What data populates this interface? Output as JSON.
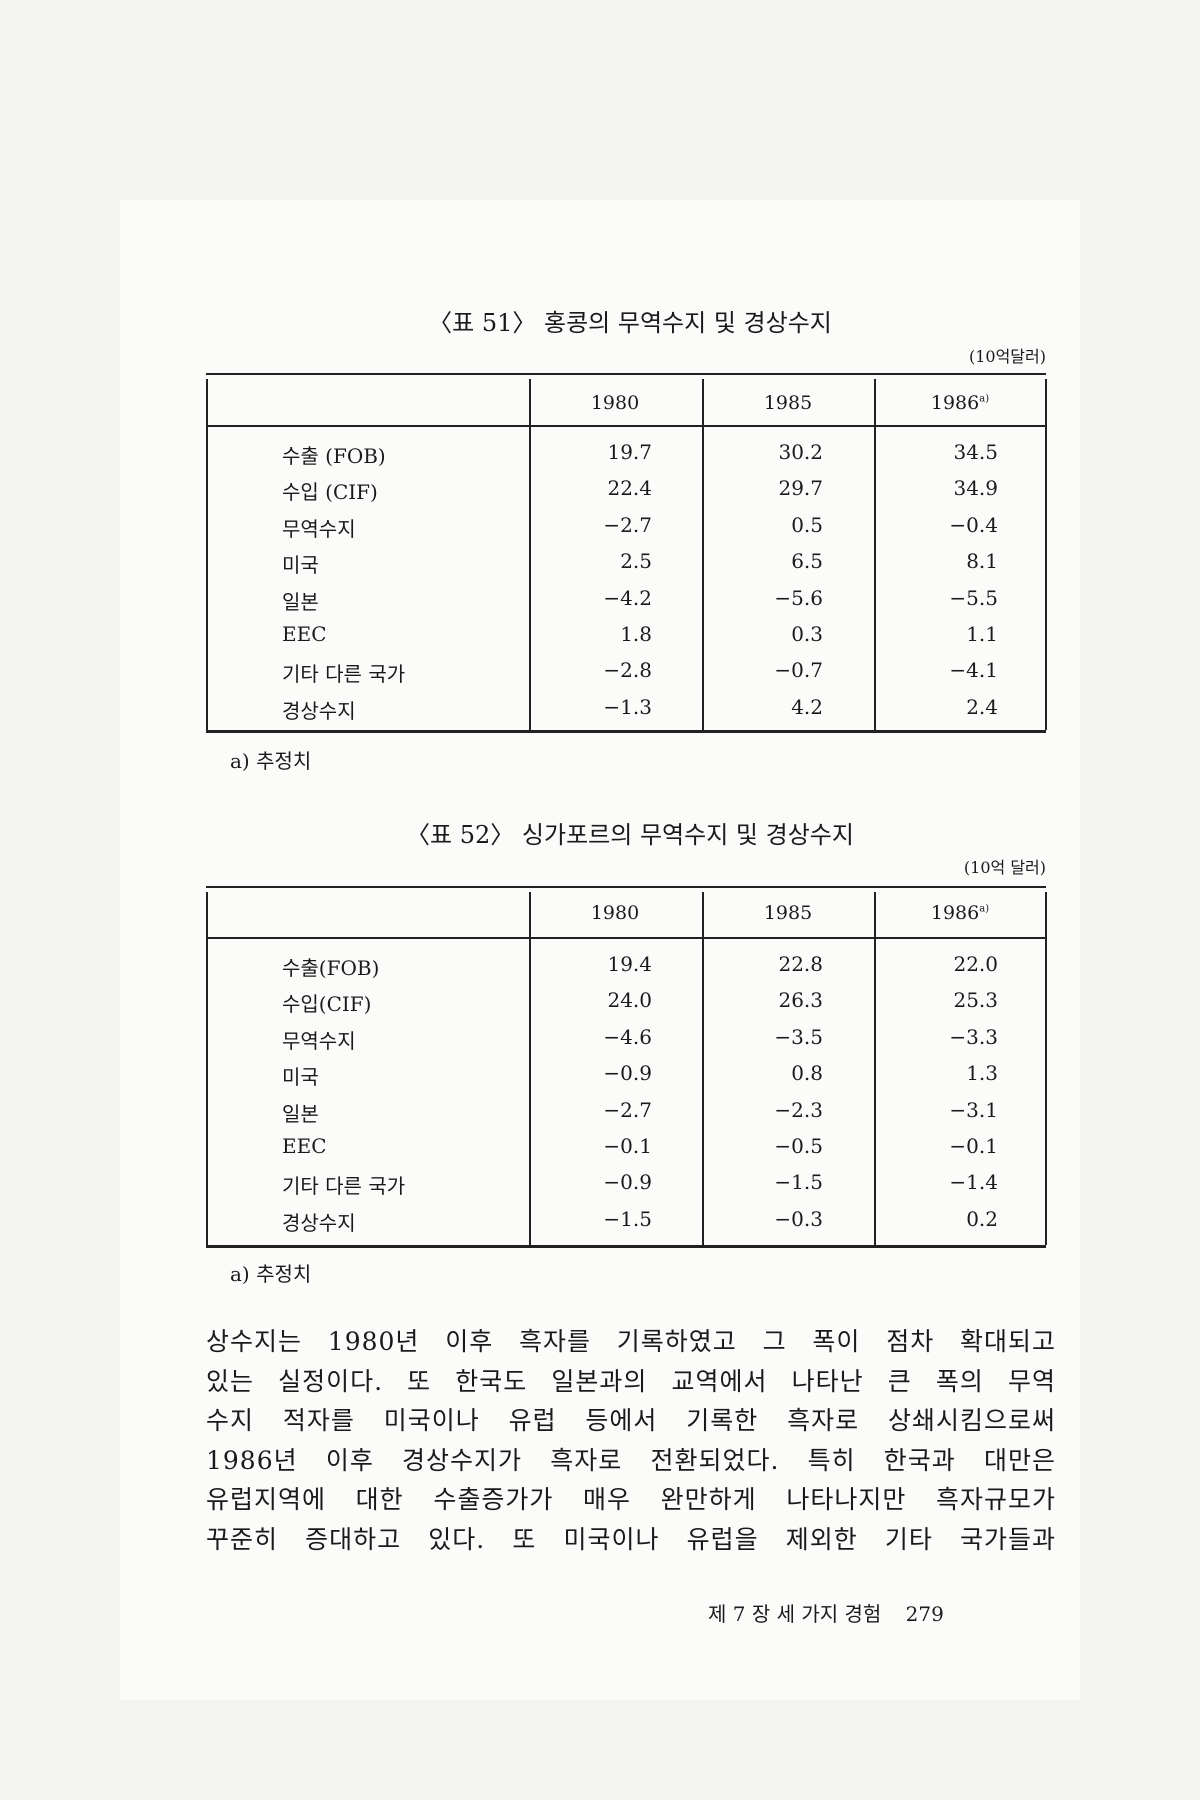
{
  "tables": [
    {
      "title": "〈표 51〉 홍콩의 무역수지 및 경상수지",
      "unit": "(10억달러)",
      "columns": [
        "1980",
        "1985",
        "1986"
      ],
      "column_note": "a)",
      "rows": [
        {
          "label": "수출 (FOB)",
          "values": [
            "19.7",
            "30.2",
            "34.5"
          ]
        },
        {
          "label": "수입 (CIF)",
          "values": [
            "22.4",
            "29.7",
            "34.9"
          ]
        },
        {
          "label": "무역수지",
          "values": [
            "−2.7",
            "0.5",
            "−0.4"
          ]
        },
        {
          "label": "미국",
          "values": [
            "2.5",
            "6.5",
            "8.1"
          ]
        },
        {
          "label": "일본",
          "values": [
            "−4.2",
            "−5.6",
            "−5.5"
          ]
        },
        {
          "label": "EEC",
          "values": [
            "1.8",
            "0.3",
            "1.1"
          ]
        },
        {
          "label": "기타 다른 국가",
          "values": [
            "−2.8",
            "−0.7",
            "−4.1"
          ]
        },
        {
          "label": "경상수지",
          "values": [
            "−1.3",
            "4.2",
            "2.4"
          ]
        }
      ],
      "footnote": "a) 추정치"
    },
    {
      "title": "〈표 52〉 싱가포르의 무역수지 및 경상수지",
      "unit": "(10억 달러)",
      "columns": [
        "1980",
        "1985",
        "1986"
      ],
      "column_note": "a)",
      "rows": [
        {
          "label": "수출(FOB)",
          "values": [
            "19.4",
            "22.8",
            "22.0"
          ]
        },
        {
          "label": "수입(CIF)",
          "values": [
            "24.0",
            "26.3",
            "25.3"
          ]
        },
        {
          "label": "무역수지",
          "values": [
            "−4.6",
            "−3.5",
            "−3.3"
          ]
        },
        {
          "label": "미국",
          "values": [
            "−0.9",
            "0.8",
            "1.3"
          ]
        },
        {
          "label": "일본",
          "values": [
            "−2.7",
            "−2.3",
            "−3.1"
          ]
        },
        {
          "label": "EEC",
          "values": [
            "−0.1",
            "−0.5",
            "−0.1"
          ]
        },
        {
          "label": "기타 다른 국가",
          "values": [
            "−0.9",
            "−1.5",
            "−1.4"
          ]
        },
        {
          "label": "경상수지",
          "values": [
            "−1.5",
            "−0.3",
            "0.2"
          ]
        }
      ],
      "footnote": "a) 추정치"
    }
  ],
  "body_lines": [
    "상수지는 1980년 이후 흑자를 기록하였고 그 폭이 점차 확대되고",
    "있는 실정이다. 또 한국도 일본과의 교역에서 나타난 큰 폭의 무역",
    "수지 적자를 미국이나 유럽 등에서 기록한 흑자로 상쇄시킴으로써",
    "1986년 이후 경상수지가 흑자로 전환되었다. 특히 한국과 대만은",
    "유럽지역에 대한 수출증가가 매우 완만하게 나타나지만 흑자규모가",
    "꾸준히 증대하고 있다. 또 미국이나 유럽을 제외한 기타 국가들과"
  ],
  "footer": {
    "chapter": "제 7 장  세 가지 경험",
    "page_number": "279"
  }
}
